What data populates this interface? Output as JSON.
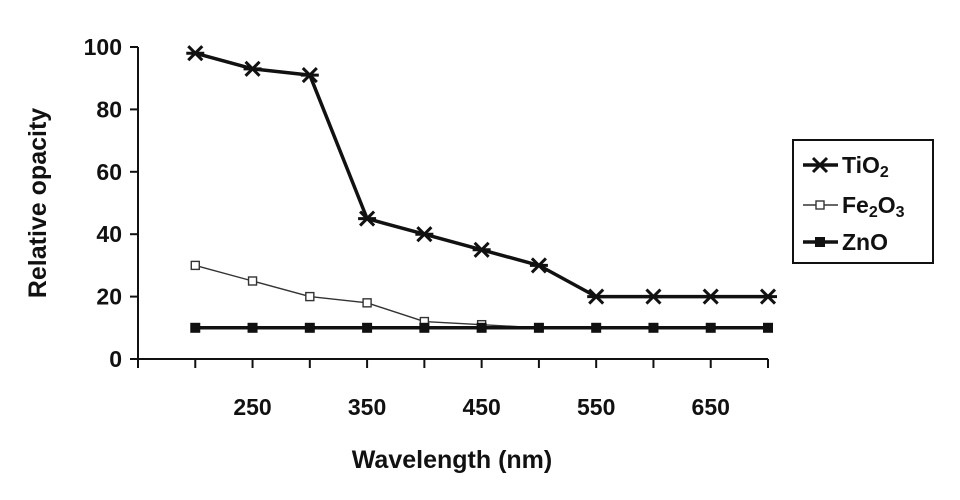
{
  "chart_data": {
    "type": "line",
    "xlabel": "Wavelength (nm)",
    "ylabel": "Relative opacity",
    "xlim": [
      150,
      700
    ],
    "ylim": [
      0,
      100
    ],
    "x_ticks": [
      250,
      350,
      450,
      550,
      650
    ],
    "y_ticks": [
      0,
      20,
      40,
      60,
      80,
      100
    ],
    "x_tick_labels": [
      "250",
      "350",
      "450",
      "550",
      "650"
    ],
    "y_tick_labels": [
      "0",
      "20",
      "40",
      "60",
      "80",
      "100"
    ],
    "legend_position": "right",
    "grid": false,
    "x": [
      200,
      250,
      300,
      350,
      400,
      450,
      500,
      550,
      600,
      650,
      700
    ],
    "series": [
      {
        "name": "TiO2",
        "label_main": "TiO",
        "label_sub": "2",
        "marker": "star",
        "line_weight": "heavy",
        "color": "#111111",
        "values": [
          98,
          93,
          91,
          45,
          40,
          35,
          30,
          20,
          20,
          20,
          20
        ]
      },
      {
        "name": "Fe2O3",
        "label_parts": [
          "Fe",
          "2",
          "O",
          "3"
        ],
        "marker": "open-square",
        "line_weight": "thin",
        "color": "#333333",
        "values": [
          30,
          25,
          20,
          18,
          12,
          11,
          10,
          10,
          10,
          10,
          10
        ]
      },
      {
        "name": "ZnO",
        "label_main": "ZnO",
        "marker": "filled-square",
        "line_weight": "heavy",
        "color": "#111111",
        "values": [
          10,
          10,
          10,
          10,
          10,
          10,
          10,
          10,
          10,
          10,
          10
        ]
      }
    ]
  }
}
